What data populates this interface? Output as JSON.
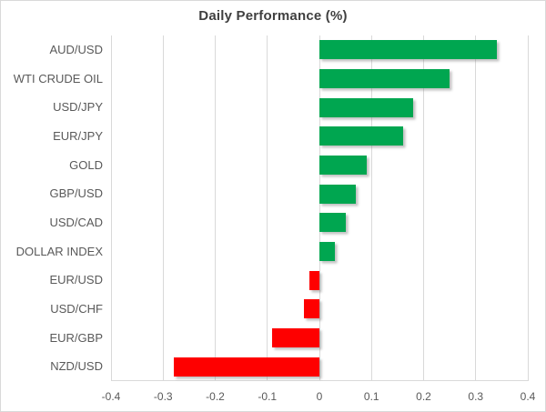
{
  "title": "Daily Performance (%)",
  "chart_data": {
    "type": "bar",
    "orientation": "horizontal",
    "title": "Daily Performance (%)",
    "xlabel": "",
    "ylabel": "",
    "categories": [
      "AUD/USD",
      "WTI CRUDE OIL",
      "USD/JPY",
      "EUR/JPY",
      "GOLD",
      "GBP/USD",
      "USD/CAD",
      "DOLLAR INDEX",
      "EUR/USD",
      "USD/CHF",
      "EUR/GBP",
      "NZD/USD"
    ],
    "values": [
      0.34,
      0.25,
      0.18,
      0.16,
      0.09,
      0.07,
      0.05,
      0.03,
      -0.02,
      -0.03,
      -0.09,
      -0.28
    ],
    "xlim": [
      -0.4,
      0.4
    ],
    "xticks": [
      -0.4,
      -0.3,
      -0.2,
      -0.1,
      0,
      0.1,
      0.2,
      0.3,
      0.4
    ],
    "xtick_labels": [
      "-0.4",
      "-0.3",
      "-0.2",
      "-0.1",
      "0",
      "0.1",
      "0.2",
      "0.3",
      "0.4"
    ],
    "grid": true,
    "legend": "none",
    "positive_color": "#00a650",
    "negative_color": "#fe0000",
    "gridline_color": "#d9d9d9",
    "label_color": "#595959",
    "title_color": "#3f3f3f"
  }
}
